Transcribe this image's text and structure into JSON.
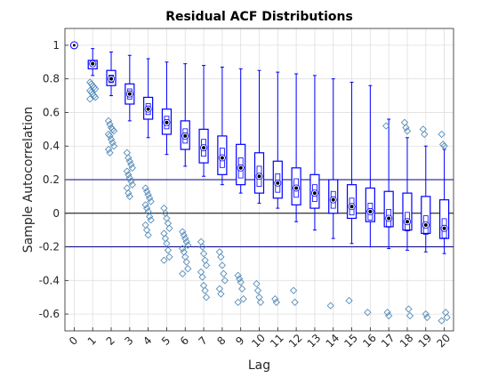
{
  "chart_data": {
    "type": "box",
    "title": "Residual ACF Distributions",
    "xlabel": "Lag",
    "ylabel": "Sample Autocorrelation",
    "xlim": [
      -0.5,
      20.5
    ],
    "ylim": [
      -0.7,
      1.1
    ],
    "grid": true,
    "x_ticks": [
      "0",
      "1",
      "2",
      "3",
      "4",
      "5",
      "6",
      "7",
      "8",
      "9",
      "10",
      "11",
      "12",
      "13",
      "14",
      "15",
      "16",
      "17",
      "18",
      "19",
      "20"
    ],
    "y_ticks": [
      -0.6,
      -0.4,
      -0.2,
      0,
      0.2,
      0.4,
      0.6,
      0.8,
      1
    ],
    "y_tick_labels": [
      "-0.6",
      "-0.4",
      "-0.2",
      "0",
      "0.2",
      "0.4",
      "0.6",
      "0.8",
      "1"
    ],
    "reference_lines": [
      {
        "y": 0.2,
        "color": "#00008b"
      },
      {
        "y": 0,
        "color": "#000000"
      },
      {
        "y": -0.2,
        "color": "#00008b"
      }
    ],
    "colors": {
      "box": "#0000ff",
      "outlier": "#4682b4",
      "median": "#000000"
    },
    "lags": [
      {
        "lag": 0,
        "median": 1.0,
        "q1": 1.0,
        "q3": 1.0,
        "whisker_low": 1.0,
        "whisker_high": 1.0,
        "outliers": []
      },
      {
        "lag": 1,
        "median": 0.89,
        "q1": 0.86,
        "q3": 0.91,
        "whisker_low": 0.82,
        "whisker_high": 0.98,
        "outliers": [
          0.78,
          0.77,
          0.76,
          0.75,
          0.74,
          0.73,
          0.72,
          0.71,
          0.7,
          0.69,
          0.68
        ]
      },
      {
        "lag": 2,
        "median": 0.8,
        "q1": 0.76,
        "q3": 0.85,
        "whisker_low": 0.7,
        "whisker_high": 0.96,
        "outliers": [
          0.55,
          0.53,
          0.51,
          0.5,
          0.49,
          0.47,
          0.46,
          0.44,
          0.42,
          0.4,
          0.38,
          0.36
        ]
      },
      {
        "lag": 3,
        "median": 0.71,
        "q1": 0.65,
        "q3": 0.77,
        "whisker_low": 0.55,
        "whisker_high": 0.94,
        "outliers": [
          0.36,
          0.33,
          0.31,
          0.29,
          0.27,
          0.25,
          0.23,
          0.21,
          0.19,
          0.17,
          0.15,
          0.12,
          0.1
        ]
      },
      {
        "lag": 4,
        "median": 0.62,
        "q1": 0.56,
        "q3": 0.69,
        "whisker_low": 0.45,
        "whisker_high": 0.92,
        "outliers": [
          0.15,
          0.13,
          0.11,
          0.09,
          0.07,
          0.05,
          0.03,
          0.01,
          -0.02,
          -0.04,
          -0.07,
          -0.1,
          -0.13
        ]
      },
      {
        "lag": 5,
        "median": 0.54,
        "q1": 0.47,
        "q3": 0.62,
        "whisker_low": 0.35,
        "whisker_high": 0.9,
        "outliers": [
          0.03,
          0.0,
          -0.03,
          -0.06,
          -0.09,
          -0.12,
          -0.15,
          -0.18,
          -0.22,
          -0.26,
          -0.28
        ]
      },
      {
        "lag": 6,
        "median": 0.46,
        "q1": 0.38,
        "q3": 0.55,
        "whisker_low": 0.28,
        "whisker_high": 0.89,
        "outliers": [
          -0.11,
          -0.13,
          -0.15,
          -0.17,
          -0.19,
          -0.21,
          -0.23,
          -0.26,
          -0.29,
          -0.33,
          -0.36
        ]
      },
      {
        "lag": 7,
        "median": 0.39,
        "q1": 0.3,
        "q3": 0.5,
        "whisker_low": 0.22,
        "whisker_high": 0.88,
        "outliers": [
          -0.17,
          -0.2,
          -0.24,
          -0.28,
          -0.31,
          -0.35,
          -0.38,
          -0.43,
          -0.46,
          -0.5
        ]
      },
      {
        "lag": 8,
        "median": 0.33,
        "q1": 0.23,
        "q3": 0.46,
        "whisker_low": 0.17,
        "whisker_high": 0.87,
        "outliers": [
          -0.23,
          -0.26,
          -0.31,
          -0.36,
          -0.4,
          -0.45,
          -0.48
        ]
      },
      {
        "lag": 9,
        "median": 0.27,
        "q1": 0.17,
        "q3": 0.41,
        "whisker_low": 0.12,
        "whisker_high": 0.86,
        "outliers": [
          -0.37,
          -0.39,
          -0.41,
          -0.45,
          -0.51,
          -0.53
        ]
      },
      {
        "lag": 10,
        "median": 0.22,
        "q1": 0.12,
        "q3": 0.36,
        "whisker_low": 0.06,
        "whisker_high": 0.85,
        "outliers": [
          -0.42,
          -0.46,
          -0.5,
          -0.53
        ]
      },
      {
        "lag": 11,
        "median": 0.18,
        "q1": 0.09,
        "q3": 0.31,
        "whisker_low": 0.03,
        "whisker_high": 0.84,
        "outliers": [
          -0.51,
          -0.53
        ]
      },
      {
        "lag": 12,
        "median": 0.15,
        "q1": 0.05,
        "q3": 0.27,
        "whisker_low": -0.05,
        "whisker_high": 0.83,
        "outliers": [
          -0.46,
          -0.53
        ]
      },
      {
        "lag": 13,
        "median": 0.12,
        "q1": 0.03,
        "q3": 0.23,
        "whisker_low": -0.1,
        "whisker_high": 0.82,
        "outliers": []
      },
      {
        "lag": 14,
        "median": 0.08,
        "q1": 0.0,
        "q3": 0.2,
        "whisker_low": -0.15,
        "whisker_high": 0.8,
        "outliers": [
          -0.55
        ]
      },
      {
        "lag": 15,
        "median": 0.04,
        "q1": -0.03,
        "q3": 0.17,
        "whisker_low": -0.18,
        "whisker_high": 0.78,
        "outliers": [
          -0.52
        ]
      },
      {
        "lag": 16,
        "median": 0.01,
        "q1": -0.05,
        "q3": 0.15,
        "whisker_low": -0.2,
        "whisker_high": 0.76,
        "outliers": [
          -0.59
        ]
      },
      {
        "lag": 17,
        "median": -0.03,
        "q1": -0.08,
        "q3": 0.13,
        "whisker_low": -0.21,
        "whisker_high": 0.56,
        "outliers": [
          0.52,
          -0.59,
          -0.61
        ]
      },
      {
        "lag": 18,
        "median": -0.05,
        "q1": -0.1,
        "q3": 0.12,
        "whisker_low": -0.22,
        "whisker_high": 0.45,
        "outliers": [
          0.54,
          0.51,
          0.49,
          -0.57,
          -0.61
        ]
      },
      {
        "lag": 19,
        "median": -0.07,
        "q1": -0.12,
        "q3": 0.1,
        "whisker_low": -0.23,
        "whisker_high": 0.4,
        "outliers": [
          0.5,
          0.47,
          -0.6,
          -0.62
        ]
      },
      {
        "lag": 20,
        "median": -0.09,
        "q1": -0.15,
        "q3": 0.08,
        "whisker_low": -0.24,
        "whisker_high": 0.38,
        "outliers": [
          0.47,
          0.41,
          0.4,
          -0.59,
          -0.62,
          -0.64
        ]
      }
    ]
  }
}
